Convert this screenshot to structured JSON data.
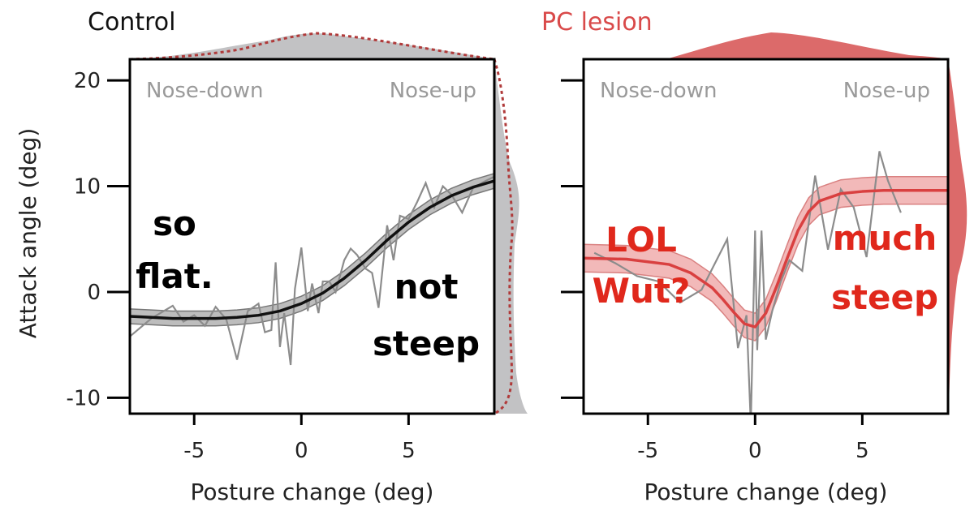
{
  "chart_data": [
    {
      "type": "line",
      "title": "Control",
      "xlabel": "Posture change (deg)",
      "ylabel": "Attack angle (deg)",
      "xlim": [
        -8,
        9
      ],
      "ylim": [
        -11.5,
        22
      ],
      "xticks": [
        -5,
        0,
        5
      ],
      "yticks": [
        -10,
        0,
        10,
        20
      ],
      "corner_labels": [
        "Nose-down",
        "Nose-up"
      ],
      "annotations": [
        "so",
        "flat.",
        "not",
        "steep"
      ],
      "colors": {
        "fit": "#111111",
        "band": "#bdbdbd",
        "raw": "#8c8c8c",
        "marginal": "#c2c2c4",
        "marginal_dashed": "#b03a3a"
      },
      "series": [
        {
          "name": "fit",
          "x": [
            -8,
            -7,
            -6,
            -5,
            -4,
            -3,
            -2,
            -1,
            0,
            1,
            2,
            3,
            4,
            5,
            6,
            7,
            8,
            9
          ],
          "y": [
            -2.3,
            -2.4,
            -2.5,
            -2.5,
            -2.5,
            -2.4,
            -2.2,
            -1.8,
            -1.1,
            -0.1,
            1.3,
            3.0,
            4.9,
            6.6,
            8.0,
            9.1,
            9.9,
            10.5
          ],
          "band_halfwidth": 0.7
        },
        {
          "name": "raw",
          "x": [
            -8,
            -7,
            -6,
            -5.5,
            -5,
            -4.5,
            -4,
            -3.5,
            -3,
            -2.5,
            -2,
            -1.7,
            -1.4,
            -1.2,
            -1,
            -0.8,
            -0.5,
            -0.3,
            0,
            0.3,
            0.5,
            0.8,
            1,
            1.3,
            1.6,
            2,
            2.3,
            2.6,
            3,
            3.3,
            3.6,
            4,
            4.3,
            4.6,
            5,
            5.4,
            5.8,
            6.2,
            6.6,
            7,
            7.5,
            8,
            8.5,
            9
          ],
          "y": [
            -4.2,
            -2.5,
            -1.3,
            -2.8,
            -2.2,
            -3.2,
            -1.4,
            -2.6,
            -6.4,
            -1.8,
            -1.1,
            -3.8,
            -3.6,
            2.8,
            -5.2,
            -2.0,
            -6.9,
            0.3,
            4.2,
            -1.8,
            0.8,
            -2.0,
            1.0,
            1.0,
            0.0,
            3.0,
            4.1,
            3.5,
            2.2,
            1.8,
            -1.5,
            6.3,
            3.0,
            7.2,
            6.9,
            8.5,
            10.3,
            8.0,
            10.0,
            9.2,
            7.5,
            9.8,
            10.4,
            10.9
          ]
        }
      ]
    },
    {
      "type": "line",
      "title": "PC lesion",
      "xlabel": "Posture change (deg)",
      "ylabel": "",
      "xlim": [
        -8,
        9
      ],
      "ylim": [
        -11.5,
        22
      ],
      "xticks": [
        -5,
        0,
        5
      ],
      "yticks": [
        -10,
        0,
        10,
        20
      ],
      "corner_labels": [
        "Nose-down",
        "Nose-up"
      ],
      "annotations": [
        "LOL",
        "Wut?",
        "much",
        "steep"
      ],
      "colors": {
        "fit": "#d94040",
        "band": "#f2b9b9",
        "raw": "#8c8c8c",
        "marginal": "#dc6a6a",
        "annotation": "#e0281c"
      },
      "series": [
        {
          "name": "fit",
          "x": [
            -8,
            -6,
            -4,
            -3,
            -2,
            -1.5,
            -1,
            -0.5,
            0,
            0.5,
            1,
            1.5,
            2,
            2.5,
            3,
            4,
            5,
            6,
            7,
            8,
            9
          ],
          "y": [
            3.2,
            3.1,
            2.6,
            1.8,
            0.4,
            -0.7,
            -1.9,
            -3.0,
            -3.3,
            -2.0,
            0.5,
            3.2,
            5.8,
            7.6,
            8.6,
            9.3,
            9.5,
            9.6,
            9.6,
            9.6,
            9.6
          ],
          "band_halfwidth": 1.3
        },
        {
          "name": "raw",
          "x": [
            -7.5,
            -6.5,
            -5.5,
            -4.5,
            -3.5,
            -2.5,
            -1.8,
            -1.3,
            -0.8,
            -0.4,
            -0.2,
            0,
            0.1,
            0.3,
            0.5,
            0.8,
            1.2,
            1.6,
            2.2,
            2.8,
            3.4,
            4,
            4.6,
            5.2,
            5.8,
            6.2,
            6.8
          ],
          "y": [
            3.7,
            2.7,
            1.5,
            1.0,
            -1.0,
            0.2,
            3.0,
            5.0,
            -5.3,
            -2.2,
            -12.5,
            5.8,
            -5.5,
            5.8,
            -4.5,
            -1.8,
            1.0,
            3.0,
            2.0,
            11.0,
            4.0,
            9.7,
            8.0,
            3.3,
            13.3,
            10.5,
            7.5
          ]
        }
      ]
    }
  ]
}
